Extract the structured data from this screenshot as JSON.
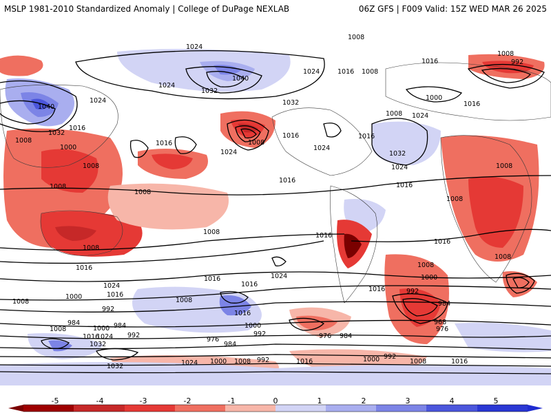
{
  "header": {
    "left_title": "MSLP 1981-2010 Standardized Anomaly | College of DuPage NEXLAB",
    "right_title": "06Z GFS | F009 Valid: 15Z WED MAR 26 2025"
  },
  "colors": {
    "neg5": "#7a0000",
    "neg4": "#c62828",
    "neg3": "#e53935",
    "neg2": "#ef6f60",
    "neg1": "#f7b6a9",
    "zero": "#ffffff",
    "pos1": "#d2d4f5",
    "pos2": "#a9aeef",
    "pos3": "#7c84e6",
    "pos4": "#4b56dc",
    "pos5": "#1e2bd0"
  },
  "colorbar": {
    "ticks": [
      "-5",
      "-4",
      "-3",
      "-2",
      "-1",
      "0",
      "1",
      "2",
      "3",
      "4",
      "5"
    ]
  },
  "contour_labels": [
    "1024",
    "1032",
    "1040",
    "1024",
    "1016",
    "1008",
    "992",
    "1008",
    "1040",
    "1032",
    "1024",
    "1016",
    "1024",
    "1000",
    "1008",
    "1008",
    "1032",
    "1016",
    "1024",
    "1032",
    "1040",
    "1024",
    "1032",
    "1008",
    "1016",
    "1016",
    "1016",
    "1024",
    "1008",
    "1000",
    "1008",
    "1008",
    "1016",
    "1008",
    "1016",
    "1008",
    "1016",
    "1016",
    "1024",
    "1024",
    "1016",
    "1016",
    "1008",
    "1000",
    "1024",
    "1016",
    "1000",
    "992",
    "992",
    "1008",
    "1024",
    "1016",
    "1000",
    "1008",
    "1016",
    "976",
    "984",
    "984",
    "1000",
    "992",
    "1024",
    "992",
    "976",
    "984",
    "1000",
    "1008",
    "1024",
    "1024",
    "1032",
    "1016",
    "1032",
    "1016",
    "1000",
    "1008",
    "992",
    "1016",
    "1000",
    "1008",
    "968",
    "976",
    "984",
    "992"
  ],
  "contour_label_texts": {
    "l1": "1024",
    "l2": "1032",
    "l3": "1040",
    "l4": "1016",
    "l5": "1008",
    "l6": "992",
    "l7": "1000",
    "l8": "984",
    "l9": "976",
    "l10": "968"
  }
}
